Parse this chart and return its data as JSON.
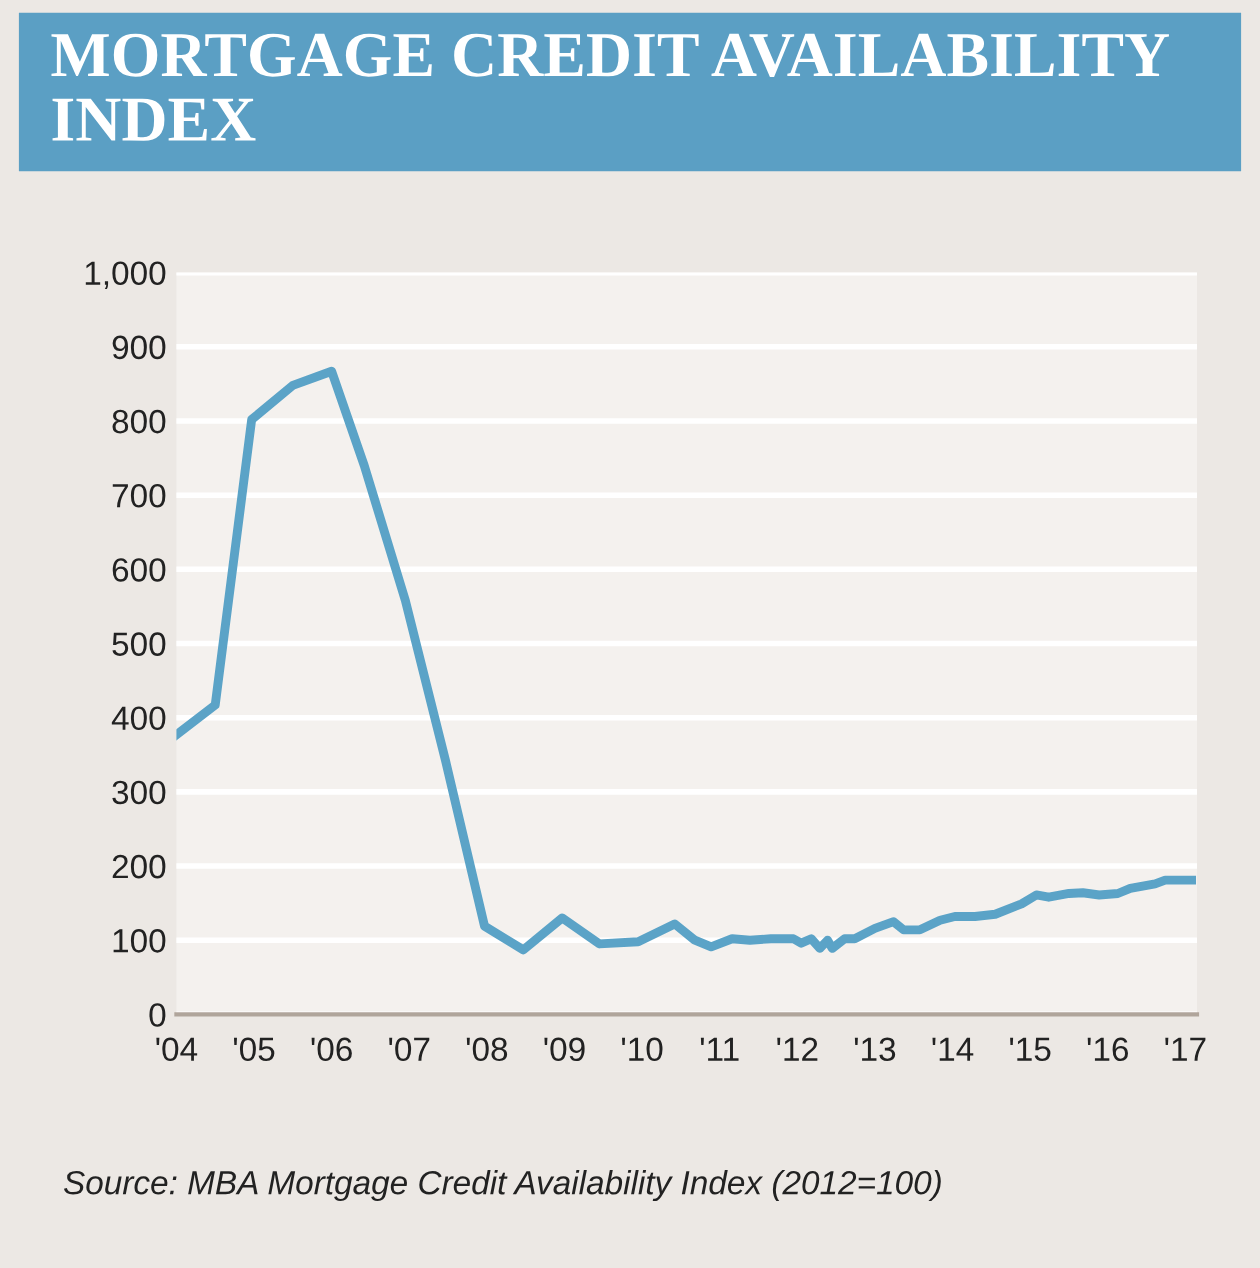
{
  "chart_data": {
    "type": "line",
    "title": "MORTGAGE CREDIT AVAILABILITY INDEX",
    "annotations": [
      "Source: MBA Mortgage Credit Availability Index (2012=100)"
    ],
    "x": [
      2004.0,
      2004.5,
      2004.97,
      2005.5,
      2006.0,
      2006.42,
      2006.95,
      2007.47,
      2007.97,
      2008.47,
      2008.97,
      2009.45,
      2009.95,
      2010.42,
      2010.68,
      2010.89,
      2011.16,
      2011.39,
      2011.66,
      2011.95,
      2012.05,
      2012.18,
      2012.29,
      2012.39,
      2012.45,
      2012.61,
      2012.74,
      2013.0,
      2013.24,
      2013.37,
      2013.58,
      2013.84,
      2014.03,
      2014.29,
      2014.55,
      2014.89,
      2015.08,
      2015.24,
      2015.5,
      2015.68,
      2015.89,
      2016.13,
      2016.29,
      2016.61,
      2016.74,
      2017.08
    ],
    "series": [
      {
        "color": "#5ba3c7",
        "values": [
          377,
          417,
          802,
          848,
          867,
          740,
          558,
          341,
          119,
          87,
          130,
          95,
          98,
          122,
          100,
          91,
          102,
          100,
          102,
          102,
          96,
          102,
          89,
          100,
          89,
          102,
          102,
          116,
          125,
          114,
          114,
          127,
          132,
          132,
          135,
          149,
          161,
          158,
          163,
          164,
          161,
          163,
          170,
          176,
          181,
          181
        ]
      }
    ],
    "xlim": [
      2004,
      2017.15
    ],
    "xticks": [
      {
        "value": 2004,
        "label": "'04"
      },
      {
        "value": 2005,
        "label": "'05"
      },
      {
        "value": 2006,
        "label": "'06"
      },
      {
        "value": 2007,
        "label": "'07"
      },
      {
        "value": 2008,
        "label": "'08"
      },
      {
        "value": 2009,
        "label": "'09"
      },
      {
        "value": 2010,
        "label": "'10"
      },
      {
        "value": 2011,
        "label": "'11"
      },
      {
        "value": 2012,
        "label": "'12"
      },
      {
        "value": 2013,
        "label": "'13"
      },
      {
        "value": 2014,
        "label": "'14"
      },
      {
        "value": 2015,
        "label": "'15"
      },
      {
        "value": 2016,
        "label": "'16"
      },
      {
        "value": 2017,
        "label": "'17"
      }
    ],
    "ylim": [
      0,
      1000
    ],
    "yticks": [
      0,
      100,
      200,
      300,
      400,
      500,
      600,
      700,
      800,
      900,
      {
        "value": 1000,
        "label": "1,000"
      }
    ],
    "grid": "y",
    "line_style": "solid",
    "marker": "none"
  }
}
